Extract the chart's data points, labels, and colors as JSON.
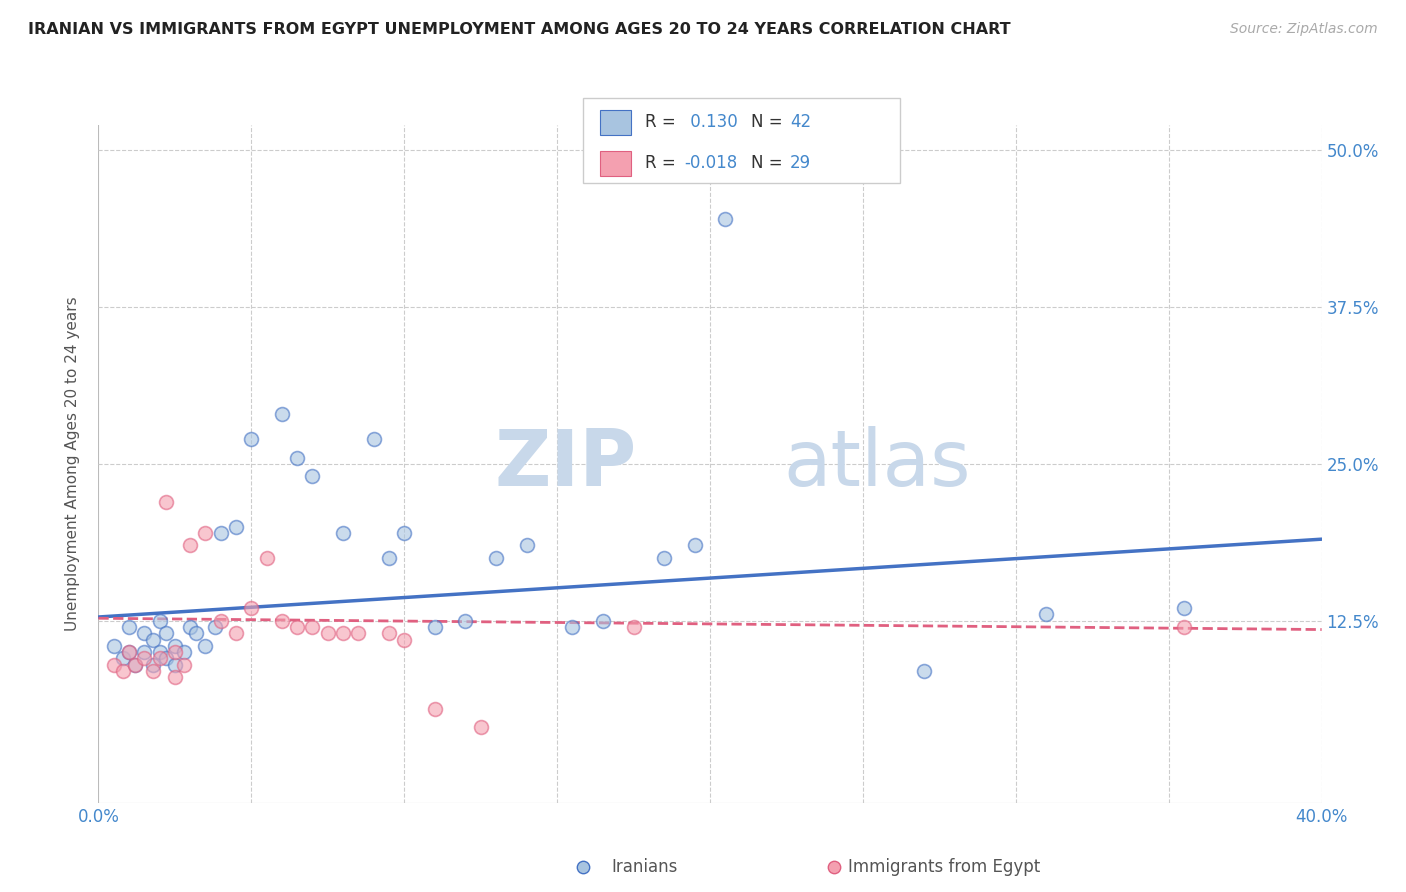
{
  "title": "IRANIAN VS IMMIGRANTS FROM EGYPT UNEMPLOYMENT AMONG AGES 20 TO 24 YEARS CORRELATION CHART",
  "source": "Source: ZipAtlas.com",
  "ylabel": "Unemployment Among Ages 20 to 24 years",
  "xlim": [
    0.0,
    0.4
  ],
  "ylim": [
    -0.02,
    0.52
  ],
  "xticks": [
    0.0,
    0.05,
    0.1,
    0.15,
    0.2,
    0.25,
    0.3,
    0.35,
    0.4
  ],
  "xticklabels": [
    "0.0%",
    "",
    "",
    "",
    "",
    "",
    "",
    "",
    "40.0%"
  ],
  "yticks": [
    0.0,
    0.125,
    0.25,
    0.375,
    0.5
  ],
  "yticklabels_right": [
    "",
    "12.5%",
    "25.0%",
    "37.5%",
    "50.0%"
  ],
  "iranian_x": [
    0.005,
    0.008,
    0.01,
    0.01,
    0.012,
    0.015,
    0.015,
    0.018,
    0.018,
    0.02,
    0.02,
    0.022,
    0.022,
    0.025,
    0.025,
    0.028,
    0.03,
    0.032,
    0.035,
    0.038,
    0.04,
    0.045,
    0.05,
    0.06,
    0.065,
    0.07,
    0.08,
    0.09,
    0.095,
    0.1,
    0.11,
    0.12,
    0.13,
    0.14,
    0.155,
    0.165,
    0.185,
    0.195,
    0.205,
    0.27,
    0.31,
    0.355
  ],
  "iranian_y": [
    0.105,
    0.095,
    0.12,
    0.1,
    0.09,
    0.115,
    0.1,
    0.11,
    0.09,
    0.125,
    0.1,
    0.095,
    0.115,
    0.09,
    0.105,
    0.1,
    0.12,
    0.115,
    0.105,
    0.12,
    0.195,
    0.2,
    0.27,
    0.29,
    0.255,
    0.24,
    0.195,
    0.27,
    0.175,
    0.195,
    0.12,
    0.125,
    0.175,
    0.185,
    0.12,
    0.125,
    0.175,
    0.185,
    0.445,
    0.085,
    0.13,
    0.135
  ],
  "egypt_x": [
    0.005,
    0.008,
    0.01,
    0.012,
    0.015,
    0.018,
    0.02,
    0.022,
    0.025,
    0.025,
    0.028,
    0.03,
    0.035,
    0.04,
    0.045,
    0.05,
    0.055,
    0.06,
    0.065,
    0.07,
    0.075,
    0.08,
    0.085,
    0.095,
    0.1,
    0.11,
    0.125,
    0.175,
    0.355
  ],
  "egypt_y": [
    0.09,
    0.085,
    0.1,
    0.09,
    0.095,
    0.085,
    0.095,
    0.22,
    0.08,
    0.1,
    0.09,
    0.185,
    0.195,
    0.125,
    0.115,
    0.135,
    0.175,
    0.125,
    0.12,
    0.12,
    0.115,
    0.115,
    0.115,
    0.115,
    0.11,
    0.055,
    0.04,
    0.12,
    0.12
  ],
  "iranian_color": "#a8c4e0",
  "egypt_color": "#f4a0b0",
  "iranian_line_color": "#4472c4",
  "egypt_line_color": "#e06080",
  "watermark_part1": "ZIP",
  "watermark_part2": "atlas",
  "watermark_color": "#c8d8ea",
  "marker_size": 100,
  "marker_alpha": 0.6,
  "bg_color": "#ffffff",
  "grid_color": "#cccccc",
  "title_color": "#222222",
  "tick_label_color": "#4488cc",
  "label_color": "#555555",
  "iranian_trend_x": [
    0.0,
    0.4
  ],
  "iranian_trend_y": [
    0.128,
    0.19
  ],
  "egypt_trend_x": [
    0.0,
    0.4
  ],
  "egypt_trend_y": [
    0.127,
    0.118
  ],
  "legend_r1": "R = ",
  "legend_v1": " 0.130",
  "legend_n1_label": "N = ",
  "legend_n1_val": "42",
  "legend_r2": "R = ",
  "legend_v2": "-0.018",
  "legend_n2_label": "N = ",
  "legend_n2_val": "29",
  "bottom_legend_label1": "Iranians",
  "bottom_legend_label2": "Immigrants from Egypt"
}
